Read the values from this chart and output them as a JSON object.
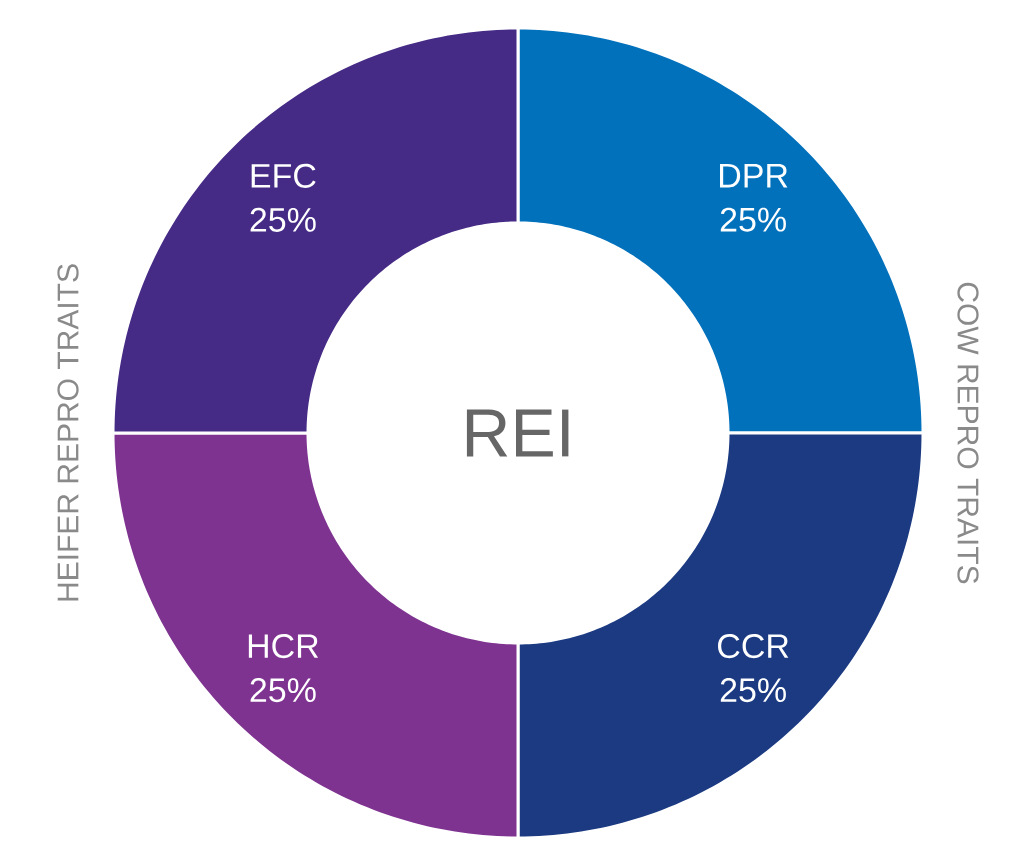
{
  "chart_data": {
    "type": "donut",
    "title": "REI",
    "categories": [
      "DPR",
      "CCR",
      "HCR",
      "EFC"
    ],
    "values": [
      25,
      25,
      25,
      25
    ],
    "colors": [
      "#0271bc",
      "#1b3a82",
      "#7f3391",
      "#452a86"
    ],
    "value_labels": [
      "25%",
      "25%",
      "25%",
      "25%"
    ],
    "annotations": [
      "HEIFER REPRO TRAITS",
      "COW REPRO TRAITS"
    ]
  }
}
